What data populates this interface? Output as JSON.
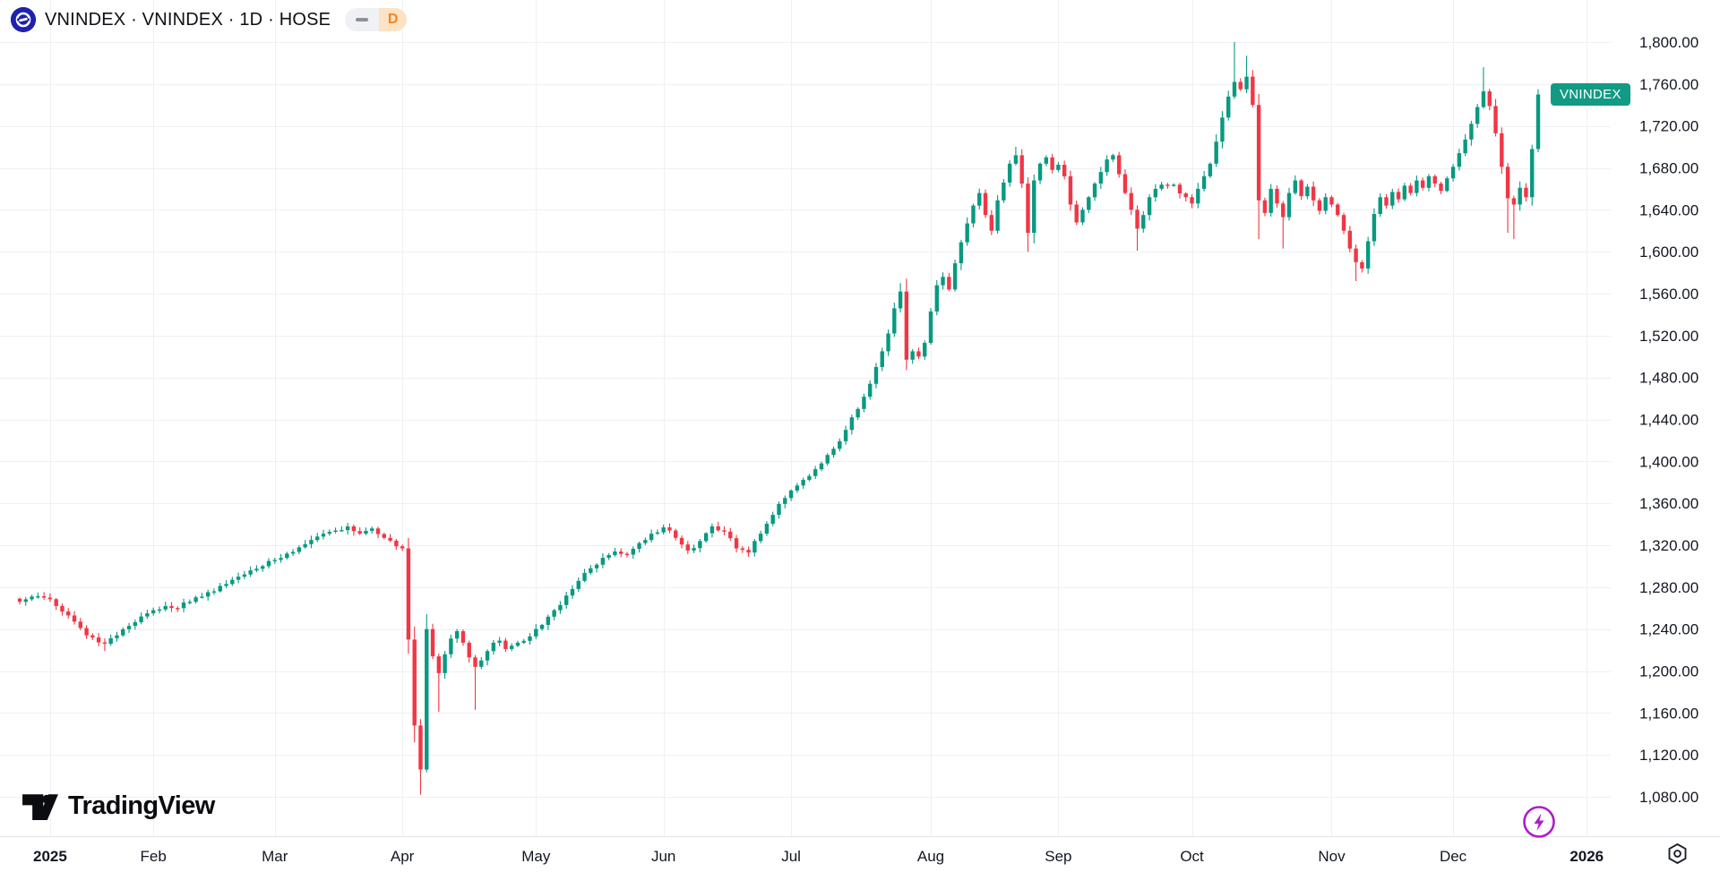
{
  "header": {
    "symbol_title": "VNINDEX · VNINDEX · 1D · HOSE",
    "interval_badge": "D"
  },
  "price_label": {
    "text": "VNINDEX",
    "color": "#129A84"
  },
  "branding": {
    "logo_text": "TradingView"
  },
  "chart_data": {
    "type": "candlestick",
    "symbol": "VNINDEX",
    "interval": "1D",
    "exchange": "HOSE",
    "up_color": "#089981",
    "down_color": "#F23645",
    "grid_color": "#EEF0F4",
    "axis_text_color": "#131722",
    "axis_line_color": "#E0E3EB",
    "last_close": 1750,
    "total_days": 251,
    "y_axis": {
      "ticks": [
        {
          "value": 1080,
          "label": "1,080.00"
        },
        {
          "value": 1120,
          "label": "1,120.00"
        },
        {
          "value": 1160,
          "label": "1,160.00"
        },
        {
          "value": 1200,
          "label": "1,200.00"
        },
        {
          "value": 1240,
          "label": "1,240.00"
        },
        {
          "value": 1280,
          "label": "1,280.00"
        },
        {
          "value": 1320,
          "label": "1,320.00"
        },
        {
          "value": 1360,
          "label": "1,360.00"
        },
        {
          "value": 1400,
          "label": "1,400.00"
        },
        {
          "value": 1440,
          "label": "1,440.00"
        },
        {
          "value": 1480,
          "label": "1,480.00"
        },
        {
          "value": 1520,
          "label": "1,520.00"
        },
        {
          "value": 1560,
          "label": "1,560.00"
        },
        {
          "value": 1600,
          "label": "1,600.00"
        },
        {
          "value": 1640,
          "label": "1,640.00"
        },
        {
          "value": 1680,
          "label": "1,680.00"
        },
        {
          "value": 1720,
          "label": "1,720.00"
        },
        {
          "value": 1760,
          "label": "1,760.00"
        },
        {
          "value": 1800,
          "label": "1,800.00"
        }
      ]
    },
    "x_axis": {
      "ticks": [
        {
          "label": "2025",
          "day": 5,
          "bold": true
        },
        {
          "label": "Feb",
          "day": 22
        },
        {
          "label": "Mar",
          "day": 42
        },
        {
          "label": "Apr",
          "day": 63
        },
        {
          "label": "May",
          "day": 85
        },
        {
          "label": "Jun",
          "day": 106
        },
        {
          "label": "Jul",
          "day": 127
        },
        {
          "label": "Aug",
          "day": 150
        },
        {
          "label": "Sep",
          "day": 171
        },
        {
          "label": "Oct",
          "day": 193
        },
        {
          "label": "Nov",
          "day": 216
        },
        {
          "label": "Dec",
          "day": 236
        },
        {
          "label": "2026",
          "day": 258,
          "bold": true
        }
      ]
    },
    "anchors": [
      [
        0,
        1266
      ],
      [
        2,
        1271
      ],
      [
        4,
        1270
      ],
      [
        6,
        1262
      ],
      [
        8,
        1253
      ],
      [
        10,
        1241
      ],
      [
        12,
        1232
      ],
      [
        14,
        1226
      ],
      [
        16,
        1234
      ],
      [
        18,
        1243
      ],
      [
        20,
        1252
      ],
      [
        22,
        1258
      ],
      [
        24,
        1262
      ],
      [
        26,
        1260
      ],
      [
        28,
        1266
      ],
      [
        30,
        1271
      ],
      [
        32,
        1276
      ],
      [
        34,
        1283
      ],
      [
        36,
        1290
      ],
      [
        38,
        1296
      ],
      [
        40,
        1300
      ],
      [
        42,
        1306
      ],
      [
        44,
        1312
      ],
      [
        46,
        1318
      ],
      [
        48,
        1325
      ],
      [
        50,
        1331
      ],
      [
        52,
        1334
      ],
      [
        54,
        1338
      ],
      [
        56,
        1331
      ],
      [
        58,
        1336
      ],
      [
        60,
        1327
      ],
      [
        62,
        1319
      ],
      [
        63,
        1317
      ],
      [
        64,
        1230
      ],
      [
        65,
        1148
      ],
      [
        66,
        1106
      ],
      [
        67,
        1240
      ],
      [
        68,
        1214
      ],
      [
        69,
        1198
      ],
      [
        70,
        1216
      ],
      [
        71,
        1231
      ],
      [
        72,
        1238
      ],
      [
        73,
        1227
      ],
      [
        74,
        1213
      ],
      [
        75,
        1204
      ],
      [
        76,
        1210
      ],
      [
        77,
        1219
      ],
      [
        78,
        1227
      ],
      [
        79,
        1229
      ],
      [
        80,
        1221
      ],
      [
        82,
        1227
      ],
      [
        84,
        1233
      ],
      [
        86,
        1244
      ],
      [
        88,
        1258
      ],
      [
        90,
        1272
      ],
      [
        92,
        1286
      ],
      [
        94,
        1298
      ],
      [
        96,
        1308
      ],
      [
        98,
        1314
      ],
      [
        100,
        1311
      ],
      [
        102,
        1322
      ],
      [
        104,
        1331
      ],
      [
        106,
        1337
      ],
      [
        108,
        1327
      ],
      [
        110,
        1315
      ],
      [
        112,
        1324
      ],
      [
        114,
        1338
      ],
      [
        116,
        1333
      ],
      [
        118,
        1317
      ],
      [
        120,
        1313
      ],
      [
        122,
        1331
      ],
      [
        124,
        1349
      ],
      [
        126,
        1365
      ],
      [
        128,
        1377
      ],
      [
        130,
        1386
      ],
      [
        132,
        1398
      ],
      [
        134,
        1412
      ],
      [
        136,
        1430
      ],
      [
        138,
        1450
      ],
      [
        140,
        1474
      ],
      [
        141,
        1490
      ],
      [
        142,
        1505
      ],
      [
        143,
        1522
      ],
      [
        144,
        1546
      ],
      [
        145,
        1562
      ],
      [
        146,
        1497
      ],
      [
        147,
        1505
      ],
      [
        148,
        1500
      ],
      [
        149,
        1513
      ],
      [
        150,
        1543
      ],
      [
        151,
        1568
      ],
      [
        152,
        1576
      ],
      [
        153,
        1564
      ],
      [
        154,
        1589
      ],
      [
        155,
        1609
      ],
      [
        156,
        1627
      ],
      [
        157,
        1644
      ],
      [
        158,
        1656
      ],
      [
        159,
        1635
      ],
      [
        160,
        1620
      ],
      [
        161,
        1649
      ],
      [
        162,
        1666
      ],
      [
        163,
        1684
      ],
      [
        164,
        1692
      ],
      [
        165,
        1665
      ],
      [
        166,
        1618
      ],
      [
        167,
        1668
      ],
      [
        168,
        1684
      ],
      [
        169,
        1690
      ],
      [
        170,
        1678
      ],
      [
        171,
        1683
      ],
      [
        172,
        1672
      ],
      [
        173,
        1645
      ],
      [
        174,
        1628
      ],
      [
        175,
        1640
      ],
      [
        176,
        1652
      ],
      [
        177,
        1665
      ],
      [
        178,
        1676
      ],
      [
        179,
        1688
      ],
      [
        180,
        1692
      ],
      [
        181,
        1674
      ],
      [
        182,
        1656
      ],
      [
        183,
        1640
      ],
      [
        184,
        1622
      ],
      [
        185,
        1635
      ],
      [
        186,
        1652
      ],
      [
        187,
        1660
      ],
      [
        188,
        1664
      ],
      [
        190,
        1664
      ],
      [
        192,
        1652
      ],
      [
        193,
        1646
      ],
      [
        194,
        1660
      ],
      [
        195,
        1672
      ],
      [
        196,
        1684
      ],
      [
        197,
        1705
      ],
      [
        198,
        1728
      ],
      [
        199,
        1748
      ],
      [
        200,
        1762
      ],
      [
        201,
        1755
      ],
      [
        202,
        1767
      ],
      [
        203,
        1740
      ],
      [
        204,
        1649
      ],
      [
        205,
        1637
      ],
      [
        206,
        1660
      ],
      [
        207,
        1646
      ],
      [
        208,
        1633
      ],
      [
        209,
        1656
      ],
      [
        210,
        1668
      ],
      [
        211,
        1653
      ],
      [
        212,
        1662
      ],
      [
        213,
        1649
      ],
      [
        214,
        1639
      ],
      [
        215,
        1652
      ],
      [
        216,
        1645
      ],
      [
        217,
        1635
      ],
      [
        218,
        1620
      ],
      [
        219,
        1603
      ],
      [
        220,
        1590
      ],
      [
        221,
        1584
      ],
      [
        222,
        1610
      ],
      [
        223,
        1636
      ],
      [
        224,
        1652
      ],
      [
        225,
        1644
      ],
      [
        226,
        1657
      ],
      [
        227,
        1650
      ],
      [
        228,
        1663
      ],
      [
        229,
        1656
      ],
      [
        230,
        1668
      ],
      [
        231,
        1661
      ],
      [
        232,
        1672
      ],
      [
        233,
        1665
      ],
      [
        234,
        1658
      ],
      [
        235,
        1670
      ],
      [
        236,
        1681
      ],
      [
        237,
        1694
      ],
      [
        238,
        1707
      ],
      [
        239,
        1722
      ],
      [
        240,
        1738
      ],
      [
        241,
        1753
      ],
      [
        242,
        1739
      ],
      [
        243,
        1713
      ],
      [
        244,
        1681
      ],
      [
        245,
        1651
      ],
      [
        246,
        1645
      ],
      [
        247,
        1661
      ],
      [
        248,
        1652
      ],
      [
        249,
        1698
      ],
      [
        250,
        1750
      ]
    ],
    "wick_overrides": {
      "14": {
        "low": 1219
      },
      "65": {
        "low": 1132
      },
      "66": {
        "low": 1082
      },
      "69": {
        "low": 1161
      },
      "75": {
        "low": 1163
      },
      "145": {
        "high": 1570
      },
      "146": {
        "low": 1487
      },
      "164": {
        "high": 1700
      },
      "166": {
        "low": 1600
      },
      "184": {
        "low": 1601
      },
      "200": {
        "high": 1800
      },
      "202": {
        "high": 1787
      },
      "204": {
        "low": 1612
      },
      "208": {
        "low": 1603
      },
      "220": {
        "low": 1572
      },
      "241": {
        "high": 1776
      },
      "245": {
        "low": 1618
      },
      "246": {
        "low": 1612
      },
      "250": {
        "high": 1755
      }
    }
  }
}
